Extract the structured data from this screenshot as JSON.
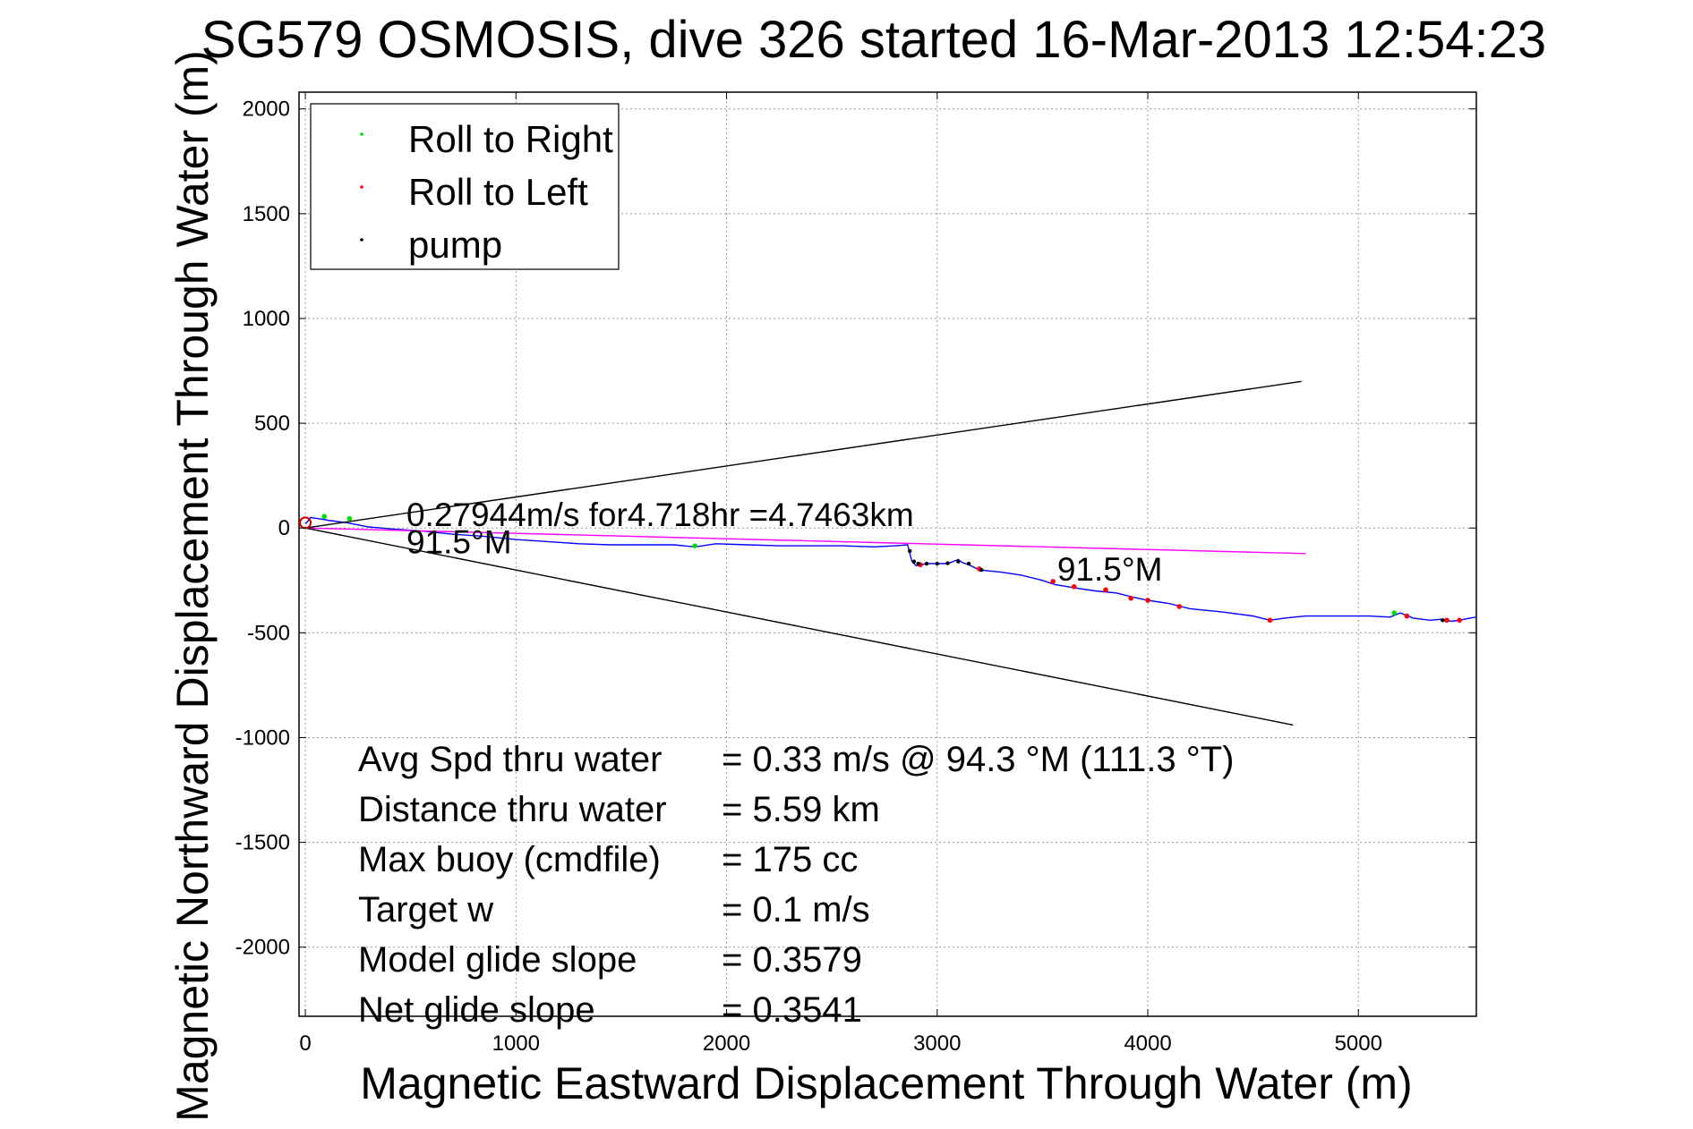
{
  "chart_data": {
    "type": "line",
    "title": "SG579 OSMOSIS, dive 326 started 16-Mar-2013 12:54:23",
    "xlabel": "Magnetic Eastward Displacement Through Water (m)",
    "ylabel": "Magnetic Northward Displacement Through Water (m)",
    "xlim": [
      -30,
      5560
    ],
    "ylim": [
      -2330,
      2080
    ],
    "xticks": [
      0,
      1000,
      2000,
      3000,
      4000,
      5000
    ],
    "yticks": [
      2000,
      1500,
      1000,
      500,
      0,
      -500,
      -1000,
      -1500,
      -2000
    ],
    "xtick_labels": [
      "0",
      "1000",
      "2000",
      "3000",
      "4000",
      "5000"
    ],
    "ytick_labels": [
      "2000",
      "1500",
      "1000",
      "500",
      "0",
      "-500",
      "-1000",
      "-1500",
      "-2000"
    ],
    "grid": true,
    "legend_position": "top-left",
    "legend": [
      {
        "label": "Roll to Right",
        "color": "#00dd00"
      },
      {
        "label": "Roll to Left",
        "color": "#ff0000"
      },
      {
        "label": "pump",
        "color": "#000000"
      }
    ],
    "series": [
      {
        "color": "#0000ff",
        "kind": "track",
        "x": [
          0,
          10,
          25,
          60,
          120,
          200,
          300,
          420,
          560,
          700,
          850,
          1000,
          1150,
          1300,
          1450,
          1600,
          1750,
          1850,
          1950,
          2100,
          2250,
          2400,
          2550,
          2700,
          2800,
          2860,
          2880,
          2900,
          2950,
          3000,
          3050,
          3100,
          3120,
          3150,
          3200,
          3300,
          3400,
          3500,
          3560,
          3620,
          3680,
          3750,
          3850,
          3930,
          4000,
          4100,
          4200,
          4350,
          4500,
          4580,
          4650,
          4750,
          4900,
          5050,
          5150,
          5200,
          5260,
          5340,
          5400,
          5440,
          5480,
          5530,
          5560
        ],
        "y": [
          20,
          30,
          50,
          45,
          35,
          25,
          5,
          -5,
          -15,
          -30,
          -40,
          -55,
          -65,
          -75,
          -80,
          -80,
          -80,
          -90,
          -75,
          -80,
          -85,
          -85,
          -85,
          -90,
          -85,
          -80,
          -160,
          -180,
          -170,
          -170,
          -170,
          -150,
          -165,
          -175,
          -200,
          -210,
          -225,
          -250,
          -270,
          -280,
          -290,
          -300,
          -310,
          -330,
          -345,
          -360,
          -385,
          -400,
          -420,
          -440,
          -430,
          -420,
          -420,
          -420,
          -425,
          -405,
          -430,
          -440,
          -435,
          -445,
          -440,
          -430,
          -425
        ]
      },
      {
        "color": "#ff00ff",
        "kind": "mean-current",
        "x": [
          0,
          4750
        ],
        "y": [
          0,
          -122
        ]
      },
      {
        "color": "#000000",
        "kind": "bound-upper",
        "x": [
          0,
          4730
        ],
        "y": [
          0,
          700
        ]
      },
      {
        "color": "#000000",
        "kind": "bound-lower",
        "x": [
          0,
          4690
        ],
        "y": [
          0,
          -940
        ]
      }
    ],
    "markers": {
      "roll_right": {
        "x": [
          90,
          210,
          1850,
          5170
        ],
        "y": [
          55,
          45,
          -85,
          -405
        ]
      },
      "roll_left": {
        "x": [
          2920,
          3200,
          3550,
          3650,
          3800,
          3920,
          4000,
          4150,
          4580,
          5230,
          5420,
          5480
        ],
        "y": [
          -175,
          -195,
          -255,
          -280,
          -295,
          -335,
          -345,
          -375,
          -440,
          -420,
          -440,
          -440
        ]
      },
      "pump": {
        "x": [
          2870,
          2890,
          2910,
          2950,
          3000,
          3050,
          3100,
          3150,
          3210,
          5400
        ],
        "y": [
          -110,
          -160,
          -170,
          -170,
          -170,
          -168,
          -160,
          -170,
          -200,
          -440
        ]
      },
      "start_circle": {
        "x": [
          0
        ],
        "y": [
          25
        ]
      }
    },
    "annotations": [
      {
        "text": "0.27944m/s for4.718hr =4.7463km",
        "x": 480,
        "y": 10
      },
      {
        "text": "91.5°M",
        "x": 480,
        "y": -120
      },
      {
        "text": "91.5°M",
        "x": 3570,
        "y": -250
      }
    ],
    "stats": [
      {
        "label": "Avg Spd thru water",
        "value": "=  0.33 m/s @  94.3 °M (111.3 °T)"
      },
      {
        "label": "Distance thru water",
        "value": "=  5.59 km"
      },
      {
        "label": "Max buoy (cmdfile)",
        "value": "= 175 cc"
      },
      {
        "label": "Target w",
        "value": "= 0.1 m/s"
      },
      {
        "label": "Model glide slope",
        "value": "= 0.3579"
      },
      {
        "label": "Net glide slope",
        "value": "= 0.3541"
      }
    ]
  }
}
